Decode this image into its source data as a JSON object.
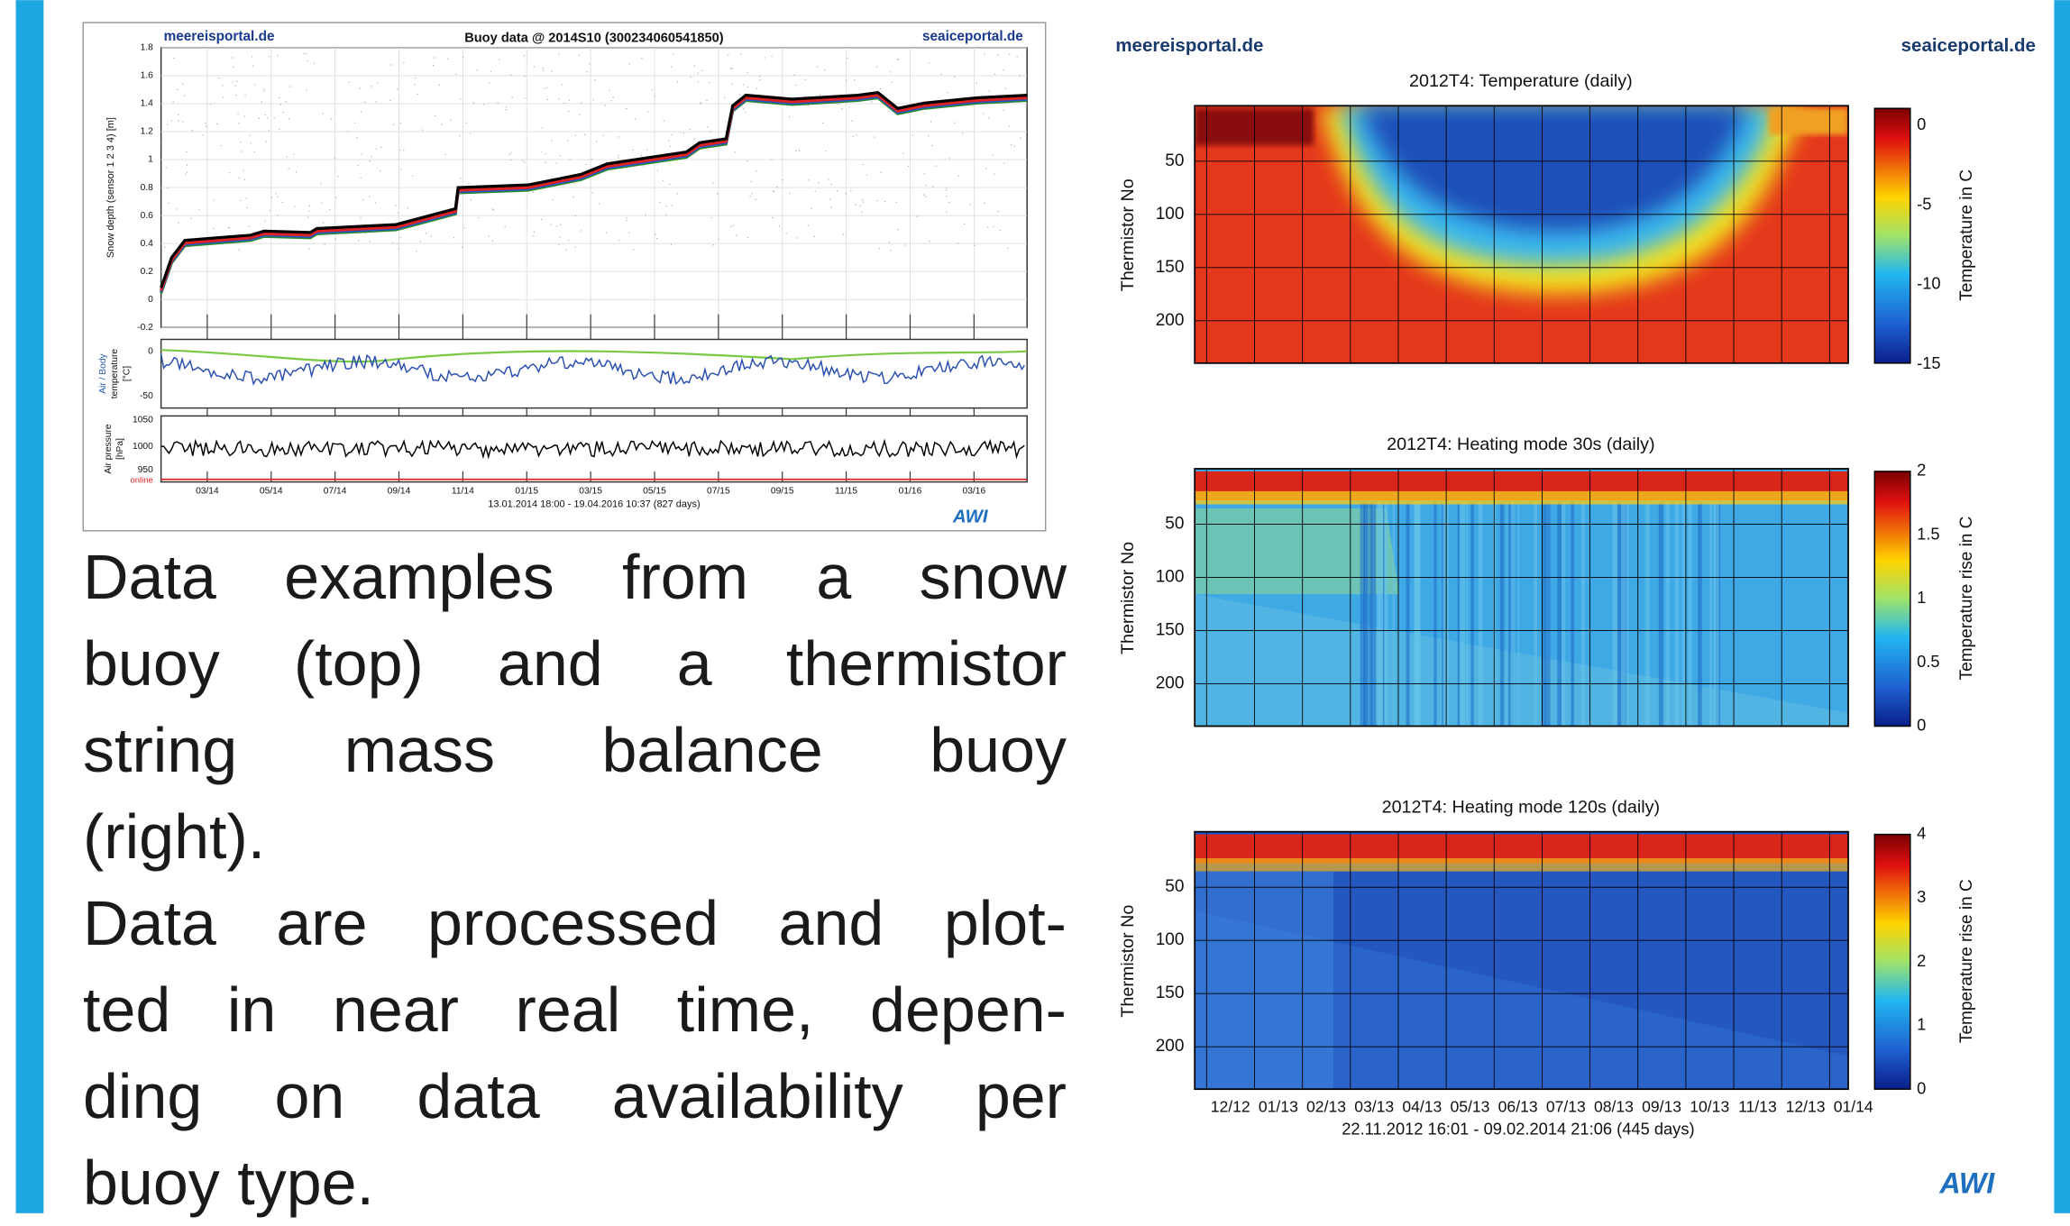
{
  "left_figure": {
    "site_left": "meereisportal.de",
    "title": "Buoy data @ 2014S10  (300234060541850)",
    "site_right": "seaiceportal.de",
    "snow_panel": {
      "ylabel": "Snow depth (sensor 1 2 3 4) [m]",
      "yticks": [
        "1.8",
        "1.6",
        "1.4",
        "1.2",
        "1",
        "0.8",
        "0.6",
        "0.4",
        "0.2",
        "0",
        "-0.2"
      ]
    },
    "temp_panel": {
      "ylabel_lines": [
        "Air / Body",
        "temperature",
        "[°C]"
      ],
      "yticks": [
        "0",
        "-50"
      ]
    },
    "pressure_panel": {
      "ylabel_lines": [
        "Air pressure",
        "[hPa]"
      ],
      "yticks": [
        "1050",
        "1000",
        "950"
      ],
      "status": "online"
    },
    "xticks": [
      "03/14",
      "05/14",
      "07/14",
      "09/14",
      "11/14",
      "01/15",
      "03/15",
      "05/15",
      "07/15",
      "09/15",
      "11/15",
      "01/16",
      "03/16"
    ],
    "date_range": "13.01.2014 18:00 - 19.04.2016 10:37 (827 days)",
    "logo": "AWI"
  },
  "caption": {
    "paragraphs": [
      [
        "Data examples from a snow",
        "buoy (top) and a thermistor",
        "string mass balance buoy",
        "(right)."
      ],
      [
        "Data are processed and plot-",
        "ted in near real time, depen-",
        "ding on data availability per",
        "buoy type."
      ]
    ]
  },
  "right_figure": {
    "site_left": "meereisportal.de",
    "site_right": "seaiceportal.de",
    "panels": [
      {
        "title": "2012T4: Temperature (daily)",
        "ylabel": "Thermistor No",
        "yticks": [
          "50",
          "100",
          "150",
          "200"
        ],
        "colorbar_ticks": [
          "0",
          "-5",
          "-10",
          "-15"
        ],
        "colorbar_label": "Temperature in C"
      },
      {
        "title": "2012T4: Heating mode 30s (daily)",
        "ylabel": "Thermistor No",
        "yticks": [
          "50",
          "100",
          "150",
          "200"
        ],
        "colorbar_ticks": [
          "2",
          "1.5",
          "1",
          "0.5",
          "0"
        ],
        "colorbar_label": "Temperature rise in C"
      },
      {
        "title": "2012T4: Heating mode 120s (daily)",
        "ylabel": "Thermistor No",
        "yticks": [
          "50",
          "100",
          "150",
          "200"
        ],
        "colorbar_ticks": [
          "4",
          "3",
          "2",
          "1",
          "0"
        ],
        "colorbar_label": "Temperature rise in C"
      }
    ],
    "xticks": [
      "12/12",
      "01/13",
      "02/13",
      "03/13",
      "04/13",
      "05/13",
      "06/13",
      "07/13",
      "08/13",
      "09/13",
      "10/13",
      "11/13",
      "12/13",
      "01/14"
    ],
    "date_range": "22.11.2012 16:01 - 09.02.2014 21:06 (445 days)",
    "logo": "AWI"
  }
}
